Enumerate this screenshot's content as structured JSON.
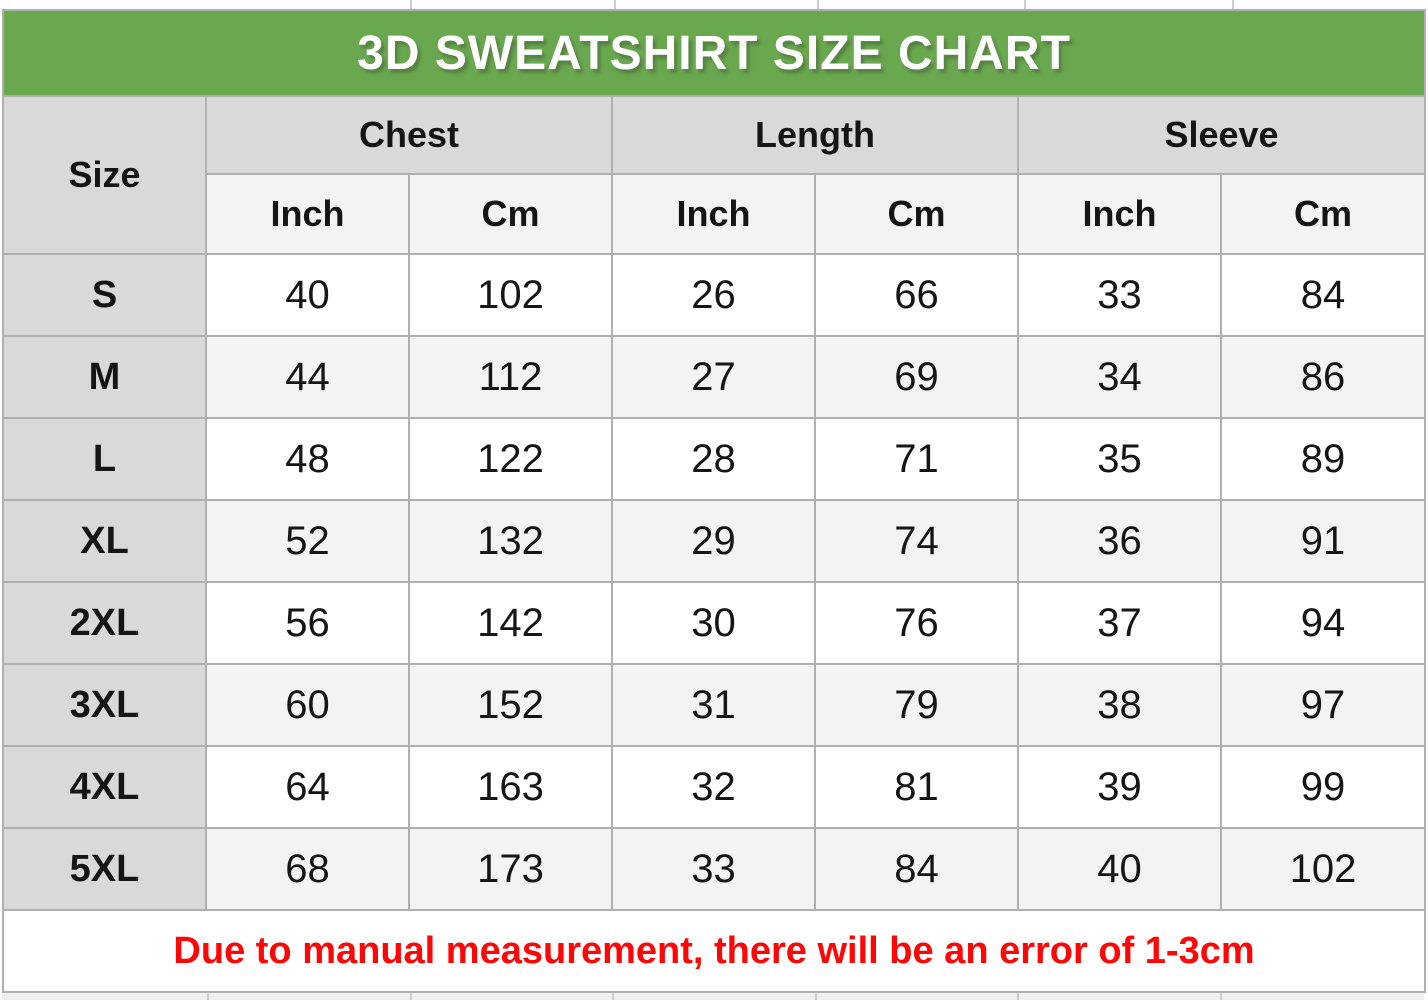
{
  "chart_data": {
    "type": "table",
    "title": "3D SWEATSHIRT SIZE CHART",
    "size_col_header": "Size",
    "groups": [
      "Chest",
      "Length",
      "Sleeve"
    ],
    "unit_headers": [
      "Inch",
      "Cm",
      "Inch",
      "Cm",
      "Inch",
      "Cm"
    ],
    "rows": [
      {
        "size": "S",
        "values": [
          40,
          102,
          26,
          66,
          33,
          84
        ]
      },
      {
        "size": "M",
        "values": [
          44,
          112,
          27,
          69,
          34,
          86
        ]
      },
      {
        "size": "L",
        "values": [
          48,
          122,
          28,
          71,
          35,
          89
        ]
      },
      {
        "size": "XL",
        "values": [
          52,
          132,
          29,
          74,
          36,
          91
        ]
      },
      {
        "size": "2XL",
        "values": [
          56,
          142,
          30,
          76,
          37,
          94
        ]
      },
      {
        "size": "3XL",
        "values": [
          60,
          152,
          31,
          79,
          38,
          97
        ]
      },
      {
        "size": "4XL",
        "values": [
          64,
          163,
          32,
          81,
          39,
          99
        ]
      },
      {
        "size": "5XL",
        "values": [
          68,
          173,
          33,
          84,
          40,
          102
        ]
      }
    ],
    "note": "Due to manual measurement, there will be an error of 1-3cm"
  },
  "colors": {
    "title_bg": "#6aa84f",
    "title_text": "#ffffff",
    "header_bg": "#d9d9d9",
    "subheader_bg": "#f3f3f3",
    "row_even_bg": "#f3f3f3",
    "row_odd_bg": "#ffffff",
    "note_text": "#fe0606",
    "grid_line": "#b0b0b0",
    "cell_text": "#151515"
  }
}
